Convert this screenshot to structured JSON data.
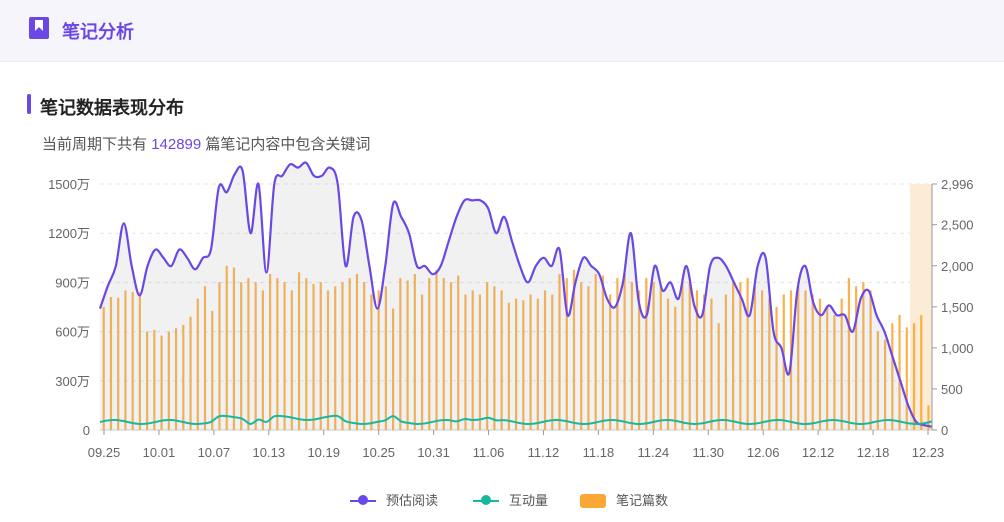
{
  "header": {
    "title": "笔记分析"
  },
  "section": {
    "title": "笔记数据表现分布",
    "summary_prefix": "当前周期下共有",
    "summary_count": "142899",
    "summary_suffix": "篇笔记内容中包含关键词"
  },
  "colors": {
    "accent": "#6b47e6",
    "interaction": "#16b9a0",
    "notes": "#fba736",
    "highlight": "#fcebd5"
  },
  "chart_data": {
    "type": "bar",
    "title": "",
    "x_ticks": [
      "09.25",
      "10.01",
      "10.07",
      "10.13",
      "10.19",
      "10.25",
      "10.31",
      "11.06",
      "11.12",
      "11.18",
      "11.24",
      "11.30",
      "12.06",
      "12.12",
      "12.18",
      "12.23"
    ],
    "left_ticks": [
      "0",
      "300万",
      "600万",
      "900万",
      "1200万",
      "1500万"
    ],
    "right_ticks": [
      "0",
      "500",
      "1,000",
      "1,500",
      "2,000",
      "2,500",
      "2,996"
    ],
    "left_ylim": [
      0,
      1500
    ],
    "right_ylim": [
      0,
      2996
    ],
    "grid": true,
    "legend_position": "bottom",
    "series": [
      {
        "name": "预估阅读",
        "axis": "left",
        "values": [
          740,
          880,
          1000,
          1260,
          1000,
          820,
          1000,
          1100,
          1050,
          1000,
          1100,
          1050,
          980,
          1050,
          1100,
          1480,
          1450,
          1560,
          1580,
          1200,
          1500,
          960,
          1500,
          1550,
          1620,
          1600,
          1630,
          1550,
          1550,
          1600,
          1500,
          1000,
          1300,
          1280,
          1000,
          740,
          1000,
          1380,
          1300,
          1200,
          1000,
          1000,
          950,
          1000,
          1150,
          1300,
          1400,
          1400,
          1400,
          1350,
          1200,
          1300,
          1150,
          1000,
          900,
          1000,
          1050,
          1000,
          1100,
          700,
          900,
          1050,
          1000,
          950,
          800,
          750,
          900,
          1200,
          780,
          700,
          1000,
          850,
          900,
          800,
          1000,
          760,
          700,
          1000,
          1050,
          1000,
          900,
          800,
          700,
          1000,
          1050,
          600,
          500,
          350,
          850,
          1000,
          780,
          700,
          760,
          700,
          700,
          600,
          800,
          850,
          700,
          600,
          450,
          300,
          150,
          50,
          30,
          20
        ],
        "tick_hint": "values are in 万, estimated"
      },
      {
        "name": "互动量",
        "axis": "left",
        "values": []
      },
      {
        "name": "笔记篇数",
        "axis": "right",
        "values": [
          1500,
          1620,
          1610,
          1700,
          1680,
          1680,
          1200,
          1220,
          1150,
          1200,
          1240,
          1280,
          1380,
          1600,
          1750,
          1450,
          1800,
          2000,
          1980,
          1800,
          1850,
          1800,
          1700,
          1900,
          1850,
          1800,
          1700,
          1920,
          1850,
          1780,
          1800,
          1700,
          1750,
          1800,
          1850,
          1900,
          1800,
          1650,
          1700,
          1750,
          1480,
          1850,
          1820,
          1900,
          1650,
          1850,
          1950,
          1850,
          1800,
          1880,
          1650,
          1700,
          1650,
          1800,
          1750,
          1700,
          1550,
          1600,
          1580,
          1650,
          1600,
          1700,
          1650,
          1900,
          1850,
          1950,
          1800,
          1750,
          1900,
          1880,
          1650,
          1850,
          1900,
          1800,
          1700,
          1850,
          1800,
          1750,
          1600,
          1500,
          1850,
          1800,
          1700,
          1650,
          1600,
          1300,
          1650,
          1800,
          1800,
          1850,
          1750,
          1700,
          1600,
          1500,
          1650,
          1700,
          1750,
          1700,
          1650,
          1600,
          1500,
          1400,
          1600,
          1850,
          1750,
          1800,
          1700,
          1200,
          1100,
          1300,
          1400,
          1250,
          1300,
          1400,
          300
        ],
        "tick_hint": "estimated"
      }
    ]
  },
  "legend": [
    {
      "label": "预估阅读",
      "kind": "line",
      "color": "#6b47e6"
    },
    {
      "label": "互动量",
      "kind": "line",
      "color": "#16b9a0"
    },
    {
      "label": "笔记篇数",
      "kind": "rect",
      "color": "#fba736"
    }
  ]
}
